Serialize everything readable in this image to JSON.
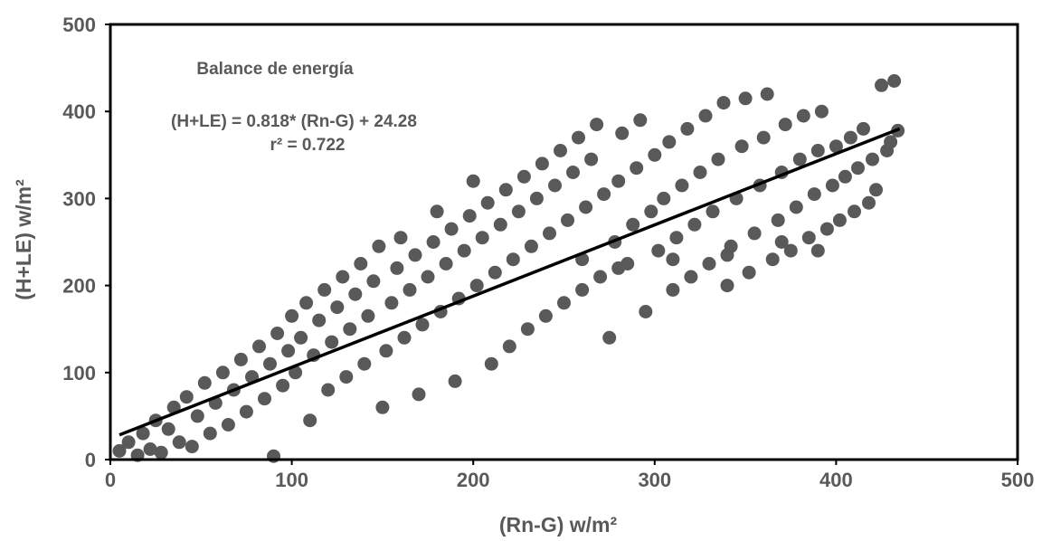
{
  "chart_data": {
    "type": "scatter",
    "title": "",
    "xlabel": "(Rn-G) w/m²",
    "ylabel": "(H+LE) w/m²",
    "xlim": [
      0,
      500
    ],
    "ylim": [
      0,
      500
    ],
    "x_ticks": [
      "0",
      "100",
      "200",
      "300",
      "400",
      "500"
    ],
    "y_ticks": [
      "0",
      "100",
      "200",
      "300",
      "400",
      "500"
    ],
    "grid": false,
    "legend": "none",
    "annotations": {
      "heading": "Balance de energía",
      "equation": "(H+LE) = 0.818* (Rn-G) + 24.28",
      "r2": "r² = 0.722"
    },
    "colors": {
      "points": "#595959",
      "trendline": "#000000",
      "axes_text": "#595959"
    },
    "series": [
      {
        "marker": "circle",
        "x_range": [
          3,
          436
        ],
        "y_range": [
          0,
          436
        ],
        "points": [
          [
            5,
            10
          ],
          [
            10,
            20
          ],
          [
            15,
            5
          ],
          [
            18,
            30
          ],
          [
            22,
            12
          ],
          [
            25,
            45
          ],
          [
            28,
            8
          ],
          [
            32,
            35
          ],
          [
            35,
            60
          ],
          [
            38,
            20
          ],
          [
            42,
            72
          ],
          [
            45,
            15
          ],
          [
            48,
            50
          ],
          [
            52,
            88
          ],
          [
            55,
            30
          ],
          [
            58,
            65
          ],
          [
            62,
            100
          ],
          [
            65,
            40
          ],
          [
            68,
            80
          ],
          [
            72,
            115
          ],
          [
            75,
            55
          ],
          [
            78,
            95
          ],
          [
            82,
            130
          ],
          [
            85,
            70
          ],
          [
            88,
            110
          ],
          [
            90,
            4
          ],
          [
            92,
            145
          ],
          [
            95,
            85
          ],
          [
            98,
            125
          ],
          [
            100,
            165
          ],
          [
            102,
            100
          ],
          [
            105,
            140
          ],
          [
            108,
            180
          ],
          [
            110,
            45
          ],
          [
            112,
            120
          ],
          [
            115,
            160
          ],
          [
            118,
            195
          ],
          [
            120,
            80
          ],
          [
            122,
            135
          ],
          [
            125,
            175
          ],
          [
            128,
            210
          ],
          [
            130,
            95
          ],
          [
            132,
            150
          ],
          [
            135,
            190
          ],
          [
            138,
            225
          ],
          [
            140,
            110
          ],
          [
            142,
            165
          ],
          [
            145,
            205
          ],
          [
            148,
            245
          ],
          [
            150,
            60
          ],
          [
            152,
            125
          ],
          [
            155,
            180
          ],
          [
            158,
            220
          ],
          [
            160,
            255
          ],
          [
            162,
            140
          ],
          [
            165,
            195
          ],
          [
            168,
            235
          ],
          [
            170,
            75
          ],
          [
            172,
            155
          ],
          [
            175,
            210
          ],
          [
            178,
            250
          ],
          [
            180,
            285
          ],
          [
            182,
            170
          ],
          [
            185,
            225
          ],
          [
            188,
            265
          ],
          [
            190,
            90
          ],
          [
            192,
            185
          ],
          [
            195,
            240
          ],
          [
            198,
            280
          ],
          [
            200,
            320
          ],
          [
            202,
            200
          ],
          [
            205,
            255
          ],
          [
            208,
            295
          ],
          [
            210,
            110
          ],
          [
            212,
            215
          ],
          [
            215,
            270
          ],
          [
            218,
            310
          ],
          [
            220,
            130
          ],
          [
            222,
            230
          ],
          [
            225,
            285
          ],
          [
            228,
            325
          ],
          [
            230,
            150
          ],
          [
            232,
            245
          ],
          [
            235,
            300
          ],
          [
            238,
            340
          ],
          [
            240,
            165
          ],
          [
            242,
            260
          ],
          [
            245,
            315
          ],
          [
            248,
            355
          ],
          [
            250,
            180
          ],
          [
            252,
            275
          ],
          [
            255,
            330
          ],
          [
            258,
            370
          ],
          [
            260,
            195
          ],
          [
            262,
            290
          ],
          [
            265,
            345
          ],
          [
            268,
            385
          ],
          [
            270,
            210
          ],
          [
            272,
            305
          ],
          [
            275,
            140
          ],
          [
            278,
            250
          ],
          [
            280,
            320
          ],
          [
            282,
            375
          ],
          [
            285,
            225
          ],
          [
            288,
            270
          ],
          [
            290,
            335
          ],
          [
            292,
            390
          ],
          [
            295,
            170
          ],
          [
            298,
            285
          ],
          [
            300,
            350
          ],
          [
            302,
            240
          ],
          [
            305,
            300
          ],
          [
            308,
            365
          ],
          [
            310,
            195
          ],
          [
            312,
            255
          ],
          [
            315,
            315
          ],
          [
            318,
            380
          ],
          [
            320,
            210
          ],
          [
            322,
            270
          ],
          [
            325,
            330
          ],
          [
            328,
            395
          ],
          [
            330,
            225
          ],
          [
            332,
            285
          ],
          [
            335,
            345
          ],
          [
            338,
            410
          ],
          [
            340,
            200
          ],
          [
            342,
            245
          ],
          [
            345,
            300
          ],
          [
            348,
            360
          ],
          [
            350,
            415
          ],
          [
            352,
            215
          ],
          [
            355,
            260
          ],
          [
            358,
            315
          ],
          [
            360,
            370
          ],
          [
            362,
            420
          ],
          [
            365,
            230
          ],
          [
            368,
            275
          ],
          [
            370,
            330
          ],
          [
            372,
            385
          ],
          [
            375,
            240
          ],
          [
            378,
            290
          ],
          [
            380,
            345
          ],
          [
            382,
            395
          ],
          [
            385,
            255
          ],
          [
            388,
            305
          ],
          [
            390,
            355
          ],
          [
            392,
            400
          ],
          [
            395,
            265
          ],
          [
            398,
            315
          ],
          [
            400,
            360
          ],
          [
            402,
            275
          ],
          [
            405,
            325
          ],
          [
            408,
            370
          ],
          [
            410,
            285
          ],
          [
            412,
            335
          ],
          [
            415,
            380
          ],
          [
            418,
            295
          ],
          [
            420,
            345
          ],
          [
            422,
            310
          ],
          [
            425,
            430
          ],
          [
            428,
            355
          ],
          [
            430,
            365
          ],
          [
            432,
            435
          ],
          [
            434,
            378
          ],
          [
            390,
            240
          ],
          [
            370,
            250
          ],
          [
            340,
            235
          ],
          [
            310,
            230
          ],
          [
            280,
            220
          ],
          [
            260,
            230
          ]
        ]
      }
    ],
    "trendline": {
      "slope": 0.818,
      "intercept": 24.28,
      "x_from": 5,
      "x_to": 435
    }
  }
}
